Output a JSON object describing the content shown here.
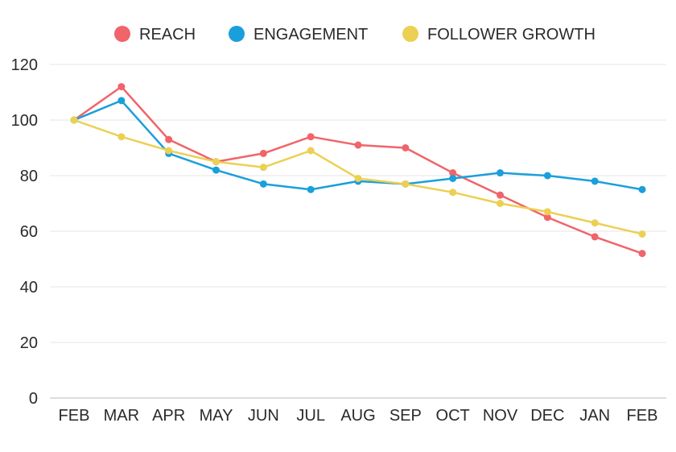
{
  "chart_data": {
    "type": "line",
    "title": "",
    "xlabel": "",
    "ylabel": "",
    "categories": [
      "FEB",
      "MAR",
      "APR",
      "MAY",
      "JUN",
      "JUL",
      "AUG",
      "SEP",
      "OCT",
      "NOV",
      "DEC",
      "JAN",
      "FEB"
    ],
    "ylim": [
      0,
      120
    ],
    "yticks": [
      0,
      20,
      40,
      60,
      80,
      100,
      120
    ],
    "grid": true,
    "legend_position": "top-center",
    "series": [
      {
        "name": "REACH",
        "color": "#f0646a",
        "values": [
          100,
          112,
          93,
          85,
          88,
          94,
          91,
          90,
          81,
          73,
          65,
          58,
          52
        ]
      },
      {
        "name": "ENGAGEMENT",
        "color": "#1a9fdb",
        "values": [
          100,
          107,
          88,
          82,
          77,
          75,
          78,
          77,
          79,
          81,
          80,
          78,
          75
        ]
      },
      {
        "name": "FOLLOWER GROWTH",
        "color": "#ecd053",
        "values": [
          100,
          94,
          89,
          85,
          83,
          89,
          79,
          77,
          74,
          70,
          67,
          63,
          59
        ]
      }
    ]
  }
}
